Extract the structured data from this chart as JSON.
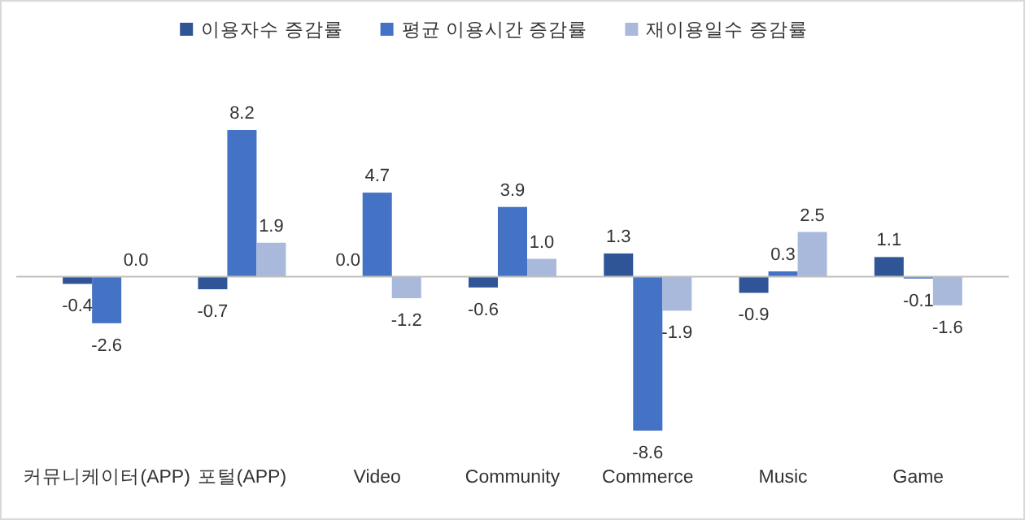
{
  "chart_data": {
    "type": "bar",
    "categories": [
      "커뮤니케이터(APP)",
      "포털(APP)",
      "Video",
      "Community",
      "Commerce",
      "Music",
      "Game"
    ],
    "series": [
      {
        "name": "이용자수 증감률",
        "color": "#2f5597",
        "values": [
          -0.4,
          -0.7,
          0.0,
          -0.6,
          1.3,
          -0.9,
          1.1
        ],
        "value_labels": [
          "-0.4",
          "-0.7",
          "0.0",
          "-0.6",
          "1.3",
          "-0.9",
          "1.1"
        ]
      },
      {
        "name": "평균 이용시간 증감률",
        "color": "#4472c4",
        "values": [
          -2.6,
          8.2,
          4.7,
          3.9,
          -8.6,
          0.3,
          -0.1
        ],
        "value_labels": [
          "-2.6",
          "8.2",
          "4.7",
          "3.9",
          "-8.6",
          "0.3",
          "-0.1"
        ]
      },
      {
        "name": "재이용일수 증감률",
        "color": "#a9b9dc",
        "values": [
          0.0,
          1.9,
          -1.2,
          1.0,
          -1.9,
          2.5,
          -1.6
        ],
        "value_labels": [
          "0.0",
          "1.9",
          "-1.2",
          "1.0",
          "-1.9",
          "2.5",
          "-1.6"
        ]
      }
    ],
    "legend": "top"
  }
}
